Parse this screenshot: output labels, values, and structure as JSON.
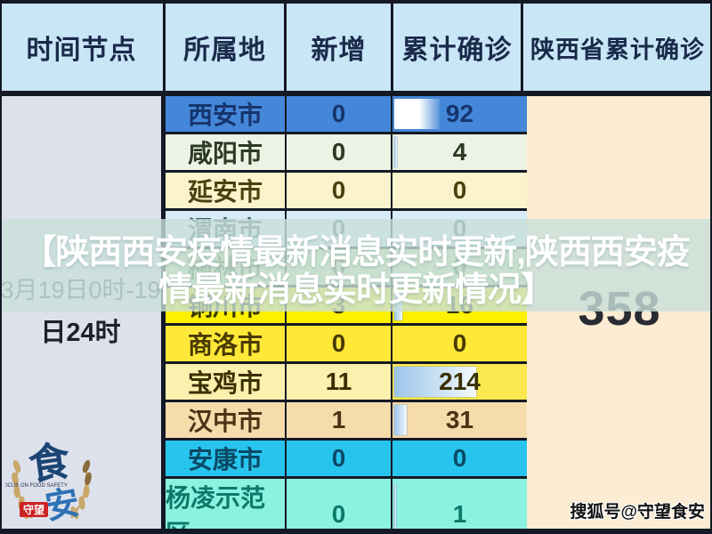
{
  "overlay": {
    "line1": "【陕西西安疫情最新消息实时更新,陕西西安疫",
    "line2": "情最新消息实时更新情况】"
  },
  "table": {
    "columns": [
      "时间节点",
      "所属地",
      "新增",
      "累计确诊",
      "陕西省累计确诊"
    ],
    "rows": [
      {
        "city": "西安市",
        "new": "0",
        "total": "92",
        "bg": "#4487d8",
        "fg": "#16356e",
        "bar_pct": 34,
        "bar_style": "white"
      },
      {
        "city": "咸阳市",
        "new": "0",
        "total": "4",
        "bg": "#edf3e4",
        "fg": "#2c3a26",
        "bar_pct": 2,
        "bar_style": "blue"
      },
      {
        "city": "延安市",
        "new": "0",
        "total": "0",
        "bg": "#fbf3cb",
        "fg": "#4a4010",
        "bar_pct": 0,
        "bar_style": "blue"
      },
      {
        "city": "渭南市",
        "new": "0",
        "total": "0",
        "bg": "#d6ecf6",
        "fg": "#3a5a6a",
        "bar_pct": 0,
        "bar_style": "blue"
      },
      {
        "city": "榆林市",
        "new": "0",
        "total": "0",
        "bg": "#c6e2a2",
        "fg": "#4a6a2a",
        "bar_pct": 0,
        "bar_style": "blue"
      },
      {
        "city": "铜川市",
        "new": "3",
        "total": "16",
        "bg": "#fdf000",
        "fg": "#3a3a00",
        "bar_pct": 6,
        "bar_style": "blue"
      },
      {
        "city": "商洛市",
        "new": "0",
        "total": "0",
        "bg": "#ffe838",
        "fg": "#4a3a00",
        "bar_pct": 0,
        "bar_style": "blue"
      },
      {
        "city": "宝鸡市",
        "new": "11",
        "total": "214",
        "bg": "#fbf0ad",
        "fg": "#3a3000",
        "total_bg": "#fce94f",
        "bar_pct": 61,
        "bar_style": "blue"
      },
      {
        "city": "汉中市",
        "new": "1",
        "total": "31",
        "bg": "#f6dcab",
        "fg": "#4a3415",
        "bar_pct": 9,
        "bar_style": "blue"
      },
      {
        "city": "安康市",
        "new": "0",
        "total": "0",
        "bg": "#27c5ee",
        "fg": "#0a4a66",
        "bar_pct": 0,
        "bar_style": "blue"
      },
      {
        "city": "杨凌示范区",
        "new": "0",
        "total": "1",
        "bg": "#8cf2e0",
        "fg": "#0c7a6a",
        "bar_pct": 1,
        "bar_style": "blue"
      }
    ]
  },
  "time": {
    "line1": "3月19日0时-19",
    "line2": "日24时",
    "full": "3月19日0时-19日24时"
  },
  "totals": {
    "province": "358"
  },
  "watermark": {
    "text": "搜狐号@守望食安"
  },
  "logo": {
    "char_top": "食",
    "char_bottom": "安",
    "ribbon": "守望",
    "subtext": "FOCUS ON FOOD SAFETY"
  },
  "colors": {
    "header_bg": "#c9e6f6",
    "header_fg": "#1a2a4a",
    "left_col_bg": "#dde1ec",
    "right_col_bg": "#fbecd3",
    "border": "#141925",
    "band_rgba": "rgba(201,224,219,0.8)",
    "title_fg": "#ffffff",
    "logo_gold": "#c9a86a",
    "logo_blue_dark": "#1b4474",
    "logo_blue": "#2e72b4",
    "logo_red": "#cc2222"
  },
  "chart_data": {
    "type": "table",
    "title": "【陕西西安疫情最新消息实时更新,陕西西安疫情最新消息实时更新情况】",
    "columns": [
      "时间节点",
      "所属地",
      "新增",
      "累计确诊",
      "陕西省累计确诊"
    ],
    "time_period": "3月19日0时-19日24时",
    "province_cumulative_total": 358,
    "rows": [
      {
        "所属地": "西安市",
        "新增": 0,
        "累计确诊": 92
      },
      {
        "所属地": "咸阳市",
        "新增": 0,
        "累计确诊": 4
      },
      {
        "所属地": "延安市",
        "新增": 0,
        "累计确诊": 0
      },
      {
        "所属地": "渭南市",
        "新增": 0,
        "累计确诊": 0
      },
      {
        "所属地": "榆林市",
        "新增": 0,
        "累计确诊": 0
      },
      {
        "所属地": "铜川市",
        "新增": 3,
        "累计确诊": 16
      },
      {
        "所属地": "商洛市",
        "新增": 0,
        "累计确诊": 0
      },
      {
        "所属地": "宝鸡市",
        "新增": 11,
        "累计确诊": 214
      },
      {
        "所属地": "汉中市",
        "新增": 1,
        "累计确诊": 31
      },
      {
        "所属地": "安康市",
        "新增": 0,
        "累计确诊": 0
      },
      {
        "所属地": "杨凌示范区",
        "新增": 0,
        "累计确诊": 1
      }
    ],
    "notes": "累计确诊 column shows conditional-formatting data bars proportional to value; watermark headline band overlays rows 渭南市/榆林市/铜川市"
  }
}
